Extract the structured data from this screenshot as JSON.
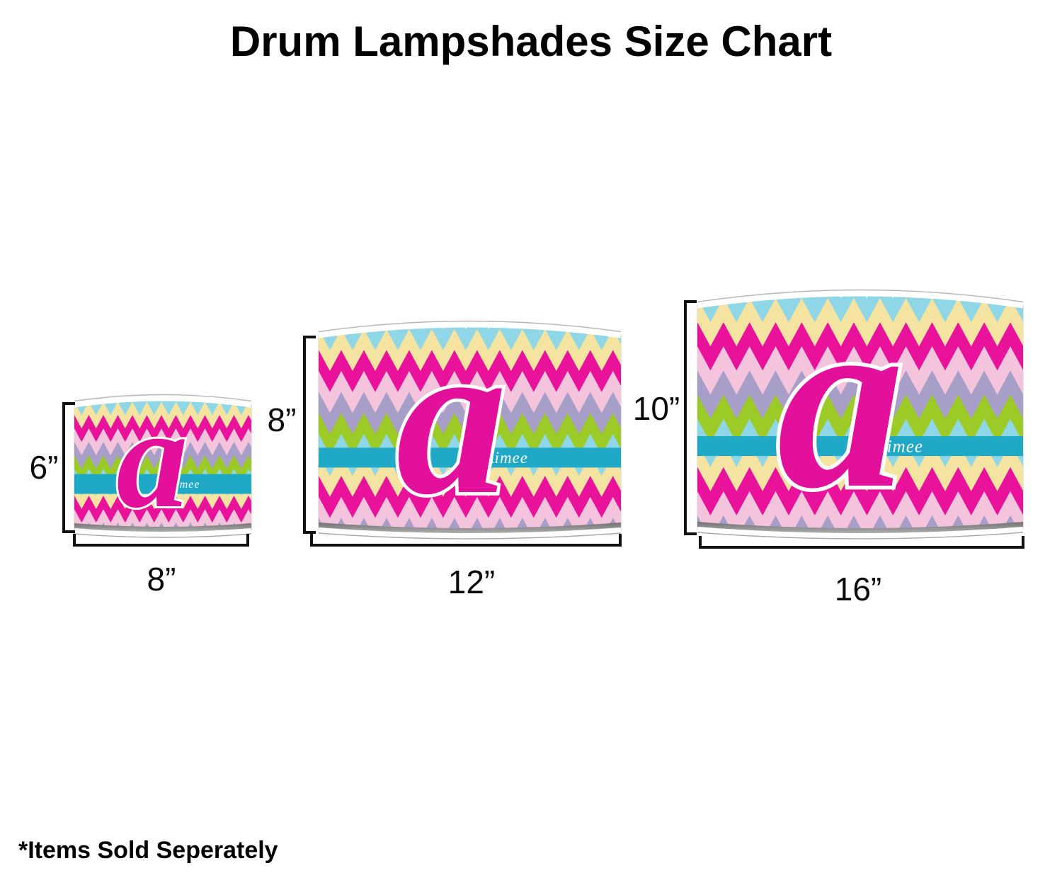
{
  "title": "Drum Lampshades Size Chart",
  "footnote": "*Items Sold Seperately",
  "design": {
    "pattern": "chevron",
    "monogram": "a",
    "personalized_name": "Aimee",
    "colors": {
      "monogram": "#E3109B",
      "name_band": "#1FA9C7",
      "name_text": "#FFFFFF",
      "chevron_cycle": [
        "#8FD7E6",
        "#F5E3A2",
        "#E8129B",
        "#F4C4DD",
        "#A79FC8",
        "#9CCA27"
      ],
      "rim": "#FFFFFF"
    }
  },
  "shades": [
    {
      "name": "small drum lampshade",
      "height_label": "6”",
      "width_label": "8”"
    },
    {
      "name": "medium drum lampshade",
      "height_label": "8”",
      "width_label": "12”"
    },
    {
      "name": "large drum lampshade",
      "height_label": "10”",
      "width_label": "16”"
    }
  ]
}
